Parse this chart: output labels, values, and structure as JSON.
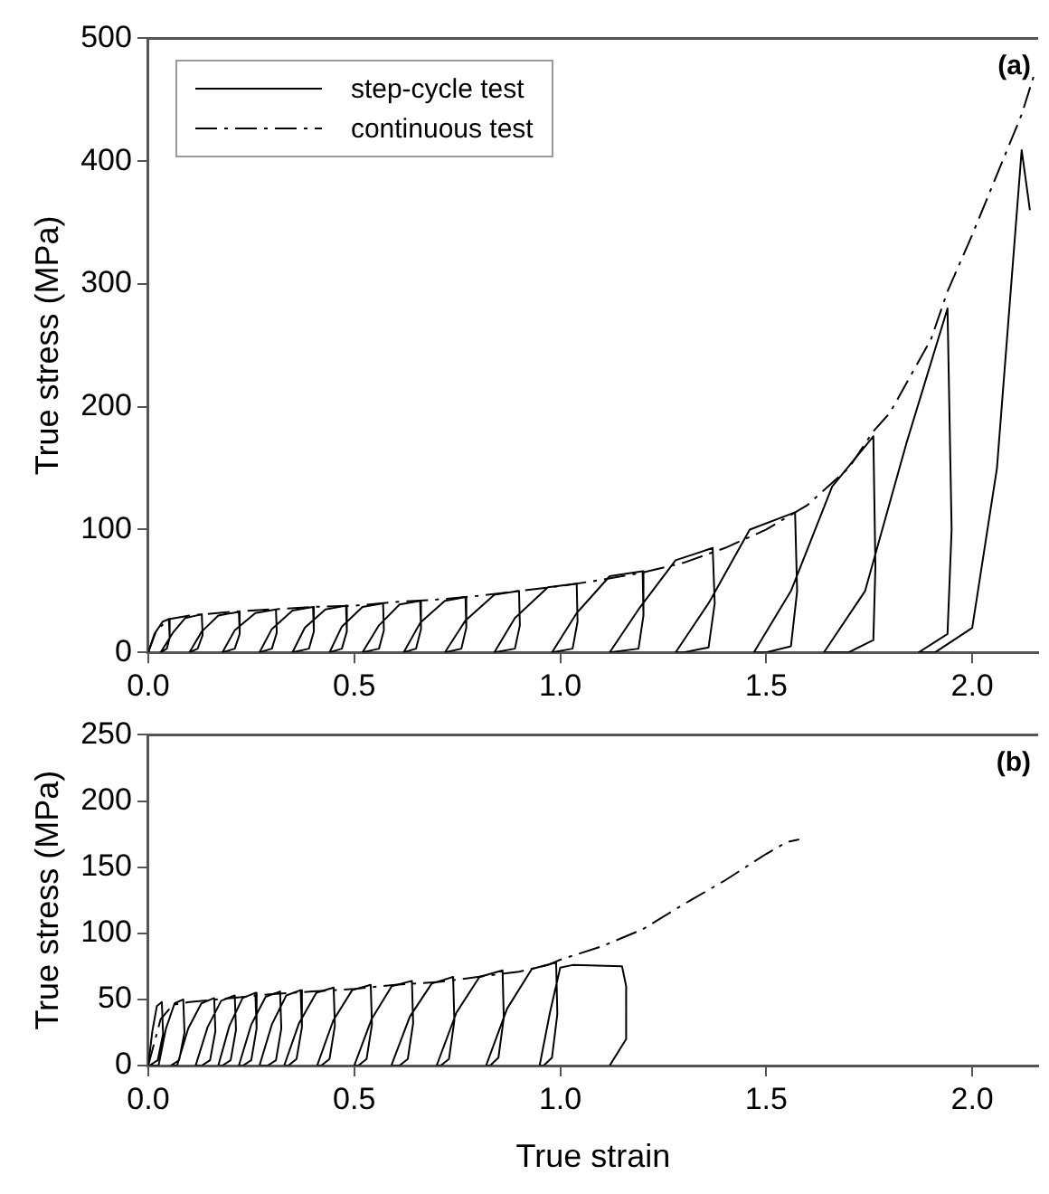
{
  "chart_data": [
    {
      "type": "line",
      "ylabel": "True stress (MPa)",
      "xlim": [
        0,
        2.16
      ],
      "ylim": [
        0,
        500
      ],
      "xticks": [
        {
          "value": 0,
          "label": "0.0"
        },
        {
          "value": 0.5,
          "label": "0.5"
        },
        {
          "value": 1,
          "label": "1.0"
        },
        {
          "value": 1.5,
          "label": "1.5"
        },
        {
          "value": 2,
          "label": "2.0"
        }
      ],
      "yticks": [
        0,
        100,
        200,
        300,
        400,
        500
      ],
      "legend": "top left",
      "marker": "none",
      "annotations": [
        "(a)"
      ],
      "series": [
        {
          "name": "step-cycle test",
          "color": "#000000",
          "line_style": "solid",
          "x": [
            0,
            0.015,
            0.035,
            0.05,
            0.052,
            0.045,
            0.03,
            0.03,
            0.06,
            0.09,
            0.13,
            0.132,
            0.12,
            0.1,
            0.1,
            0.13,
            0.17,
            0.22,
            0.222,
            0.21,
            0.18,
            0.18,
            0.21,
            0.26,
            0.31,
            0.312,
            0.3,
            0.27,
            0.27,
            0.3,
            0.35,
            0.4,
            0.402,
            0.39,
            0.35,
            0.35,
            0.38,
            0.43,
            0.48,
            0.482,
            0.47,
            0.44,
            0.44,
            0.47,
            0.52,
            0.57,
            0.572,
            0.56,
            0.52,
            0.52,
            0.56,
            0.61,
            0.66,
            0.662,
            0.65,
            0.62,
            0.62,
            0.66,
            0.72,
            0.77,
            0.772,
            0.76,
            0.72,
            0.72,
            0.77,
            0.84,
            0.9,
            0.902,
            0.89,
            0.84,
            0.84,
            0.89,
            0.97,
            1.04,
            1.042,
            1.03,
            0.98,
            0.98,
            1.04,
            1.12,
            1.2,
            1.202,
            1.19,
            1.12,
            1.12,
            1.19,
            1.28,
            1.37,
            1.375,
            1.36,
            1.3,
            1.28,
            1.36,
            1.46,
            1.57,
            1.575,
            1.56,
            1.5,
            1.47,
            1.56,
            1.66,
            1.76,
            1.765,
            1.76,
            1.7,
            1.64,
            1.74,
            1.84,
            1.94,
            1.95,
            1.94,
            1.87,
            1.91,
            2.0,
            2.06,
            2.12,
            2.14
          ],
          "values": [
            0,
            15,
            25,
            27,
            12,
            3,
            0,
            0,
            16,
            28,
            31,
            14,
            3,
            0,
            0,
            17,
            30,
            33,
            15,
            3,
            0,
            0,
            18,
            32,
            35,
            16,
            3,
            0,
            0,
            19,
            34,
            37,
            17,
            3,
            0,
            0,
            20,
            35,
            38,
            17,
            3,
            0,
            0,
            21,
            37,
            40,
            18,
            3,
            0,
            0,
            22,
            39,
            42,
            19,
            3,
            0,
            0,
            24,
            42,
            45,
            20,
            3,
            0,
            0,
            26,
            47,
            50,
            22,
            3,
            0,
            0,
            28,
            53,
            56,
            25,
            3,
            0,
            0,
            32,
            62,
            66,
            30,
            3,
            0,
            0,
            35,
            75,
            85,
            40,
            4,
            0,
            0,
            40,
            100,
            114,
            50,
            5,
            0,
            0,
            50,
            135,
            176,
            70,
            10,
            0,
            0,
            50,
            170,
            280,
            100,
            15,
            0,
            0,
            20,
            150,
            409,
            360
          ]
        },
        {
          "name": "continuous test",
          "color": "#000000",
          "line_style": "dashed",
          "x": [
            0,
            0.02,
            0.05,
            0.1,
            0.2,
            0.3,
            0.4,
            0.5,
            0.6,
            0.7,
            0.8,
            0.9,
            1.0,
            1.1,
            1.2,
            1.3,
            1.4,
            1.5,
            1.6,
            1.7,
            1.76,
            1.8,
            1.9,
            1.94,
            2.0,
            2.12,
            2.15
          ],
          "values": [
            0,
            18,
            27,
            30,
            33,
            35,
            37,
            38,
            41,
            43,
            46,
            50,
            54,
            59,
            65,
            73,
            85,
            100,
            120,
            150,
            180,
            195,
            255,
            294,
            340,
            438,
            470
          ]
        }
      ]
    },
    {
      "type": "line",
      "xlabel": "True strain",
      "ylabel": "True stress (MPa)",
      "xlim": [
        0,
        2.16
      ],
      "ylim": [
        0,
        250
      ],
      "xticks": [
        {
          "value": 0,
          "label": "0.0"
        },
        {
          "value": 0.5,
          "label": "0.5"
        },
        {
          "value": 1,
          "label": "1.0"
        },
        {
          "value": 1.5,
          "label": "1.5"
        },
        {
          "value": 2,
          "label": "2.0"
        }
      ],
      "yticks": [
        0,
        50,
        100,
        150,
        200,
        250
      ],
      "marker": "none",
      "annotations": [
        "(b)"
      ],
      "series": [
        {
          "color": "#000000",
          "line_style": "solid",
          "x": [
            0,
            0.01,
            0.021,
            0.033,
            0.036,
            0.023,
            0.003,
            0.025,
            0.043,
            0.064,
            0.085,
            0.088,
            0.075,
            0.055,
            0.07,
            0.097,
            0.129,
            0.16,
            0.163,
            0.15,
            0.13,
            0.115,
            0.144,
            0.177,
            0.21,
            0.213,
            0.2,
            0.18,
            0.17,
            0.197,
            0.229,
            0.26,
            0.263,
            0.25,
            0.23,
            0.22,
            0.25,
            0.285,
            0.32,
            0.323,
            0.31,
            0.29,
            0.27,
            0.3,
            0.335,
            0.37,
            0.373,
            0.36,
            0.34,
            0.33,
            0.366,
            0.408,
            0.45,
            0.453,
            0.44,
            0.42,
            0.41,
            0.449,
            0.495,
            0.54,
            0.543,
            0.53,
            0.51,
            0.5,
            0.542,
            0.591,
            0.64,
            0.643,
            0.63,
            0.61,
            0.59,
            0.635,
            0.688,
            0.74,
            0.743,
            0.73,
            0.71,
            0.7,
            0.748,
            0.804,
            0.86,
            0.863,
            0.85,
            0.83,
            0.82,
            0.871,
            0.931,
            0.99,
            0.993,
            0.98,
            0.96,
            0.95,
            0.975,
            1.0,
            1.03,
            1.15,
            1.16,
            1.16,
            1.12
          ],
          "values": [
            0,
            26,
            45,
            48,
            24,
            4,
            0,
            0,
            28,
            47,
            50,
            25,
            4,
            0,
            0,
            28,
            47,
            51,
            26,
            4,
            0,
            0,
            29,
            49,
            53,
            27,
            4,
            0,
            0,
            30,
            51,
            55,
            28,
            4,
            0,
            0,
            31,
            52,
            56,
            28,
            4,
            0,
            0,
            31,
            53,
            57,
            29,
            5,
            0,
            0,
            32,
            55,
            59,
            30,
            5,
            0,
            0,
            34,
            57,
            61,
            31,
            5,
            0,
            0,
            35,
            60,
            64,
            32,
            5,
            0,
            0,
            37,
            62,
            67,
            34,
            5,
            0,
            0,
            40,
            67,
            72,
            36,
            6,
            0,
            0,
            43,
            73,
            78,
            39,
            6,
            0,
            0,
            40,
            74,
            76,
            75,
            60,
            20,
            0
          ]
        },
        {
          "color": "#000000",
          "line_style": "dashed",
          "x": [
            0,
            0.03,
            0.06,
            0.1,
            0.2,
            0.3,
            0.4,
            0.5,
            0.6,
            0.7,
            0.8,
            0.9,
            0.97,
            1.0,
            1.1,
            1.2,
            1.3,
            1.4,
            1.5,
            1.55,
            1.58
          ],
          "values": [
            0,
            35,
            46,
            48,
            51,
            54,
            56,
            58,
            61,
            63,
            67,
            71,
            76,
            80,
            90,
            103,
            122,
            140,
            160,
            169,
            171
          ]
        }
      ]
    }
  ]
}
